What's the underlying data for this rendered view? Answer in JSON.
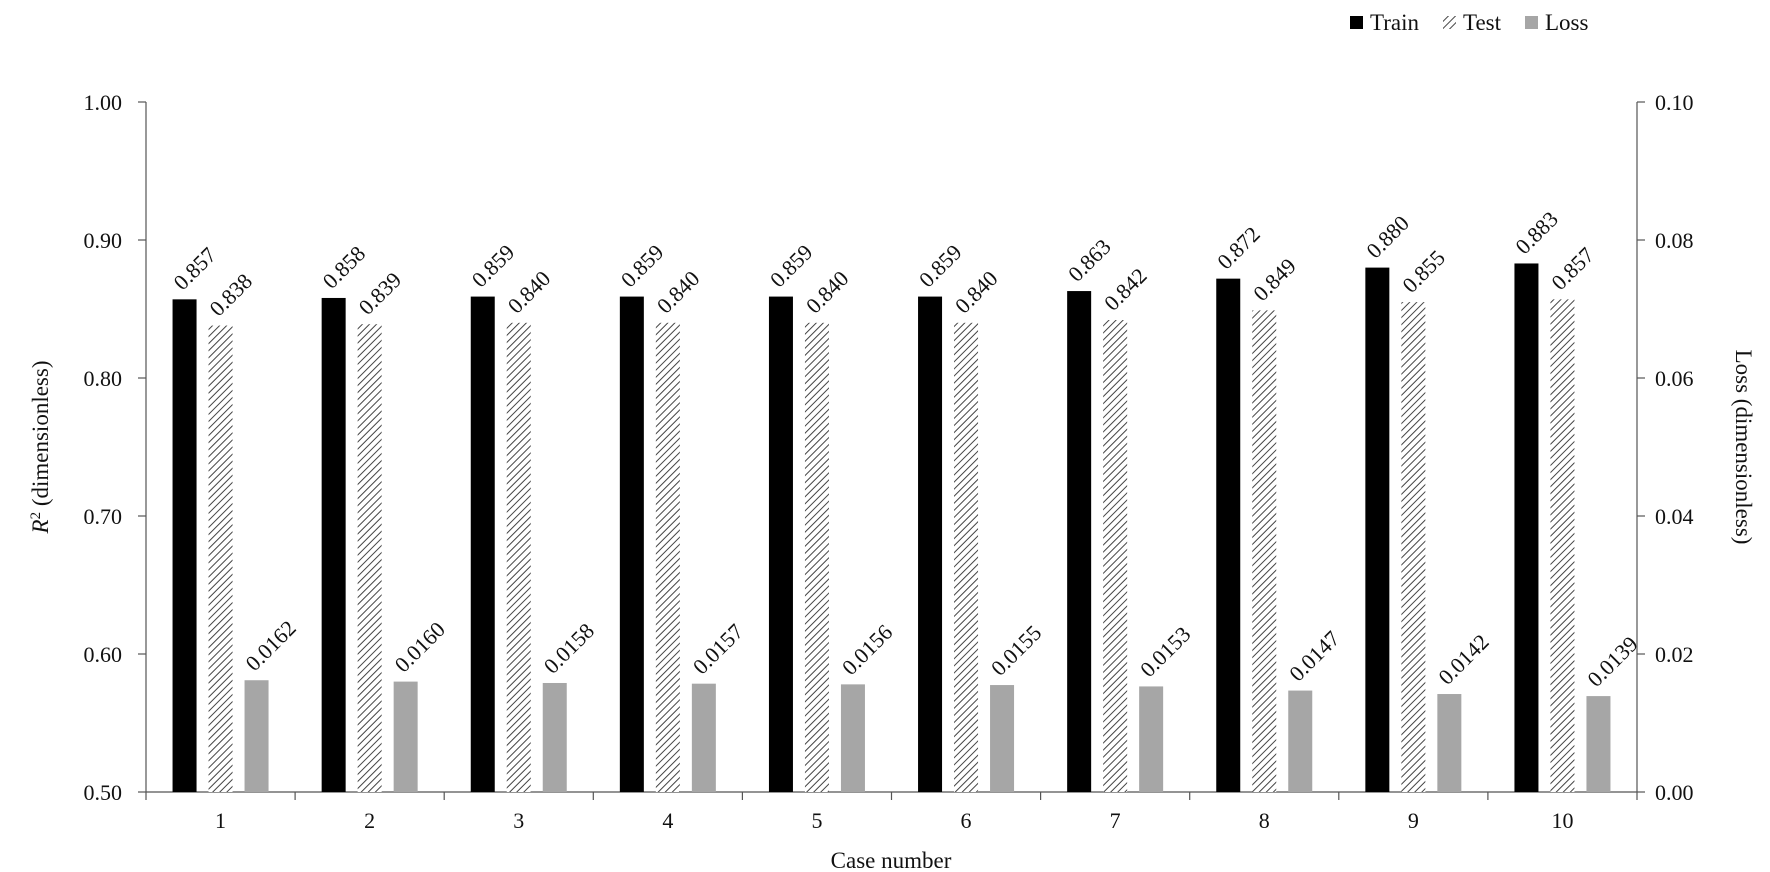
{
  "chart_data": {
    "type": "bar",
    "title": "",
    "xlabel": "Case number",
    "ylabel_var": "R",
    "ylabel_sup": "2",
    "ylabel_rest": " (dimensionless)",
    "y2label": "Loss (dimensionless)",
    "categories": [
      "1",
      "2",
      "3",
      "4",
      "5",
      "6",
      "7",
      "8",
      "9",
      "10"
    ],
    "ylim": [
      0.5,
      1.0
    ],
    "y2lim": [
      0.0,
      0.1
    ],
    "yticks": [
      "0.50",
      "0.60",
      "0.70",
      "0.80",
      "0.90",
      "1.00"
    ],
    "y2ticks": [
      "0.00",
      "0.02",
      "0.04",
      "0.06",
      "0.08",
      "0.10"
    ],
    "grid": false,
    "legend_position": "top-right",
    "series": [
      {
        "name": "Train",
        "axis": "left",
        "fill": "#000000",
        "pattern": "solid",
        "values": [
          0.857,
          0.858,
          0.859,
          0.859,
          0.859,
          0.859,
          0.863,
          0.872,
          0.88,
          0.883
        ],
        "labels": [
          "0.857",
          "0.858",
          "0.859",
          "0.859",
          "0.859",
          "0.859",
          "0.863",
          "0.872",
          "0.880",
          "0.883"
        ]
      },
      {
        "name": "Test",
        "axis": "left",
        "fill": "#ffffff",
        "pattern": "hatch",
        "values": [
          0.838,
          0.839,
          0.84,
          0.84,
          0.84,
          0.84,
          0.842,
          0.849,
          0.855,
          0.857
        ],
        "labels": [
          "0.838",
          "0.839",
          "0.840",
          "0.840",
          "0.840",
          "0.840",
          "0.842",
          "0.849",
          "0.855",
          "0.857"
        ]
      },
      {
        "name": "Loss",
        "axis": "right",
        "fill": "#a6a6a6",
        "pattern": "solid",
        "values": [
          0.0162,
          0.016,
          0.0158,
          0.0157,
          0.0156,
          0.0155,
          0.0153,
          0.0147,
          0.0142,
          0.0139
        ],
        "labels": [
          "0.0162",
          "0.0160",
          "0.0158",
          "0.0157",
          "0.0156",
          "0.0155",
          "0.0153",
          "0.0147",
          "0.0142",
          "0.0139"
        ]
      }
    ]
  }
}
